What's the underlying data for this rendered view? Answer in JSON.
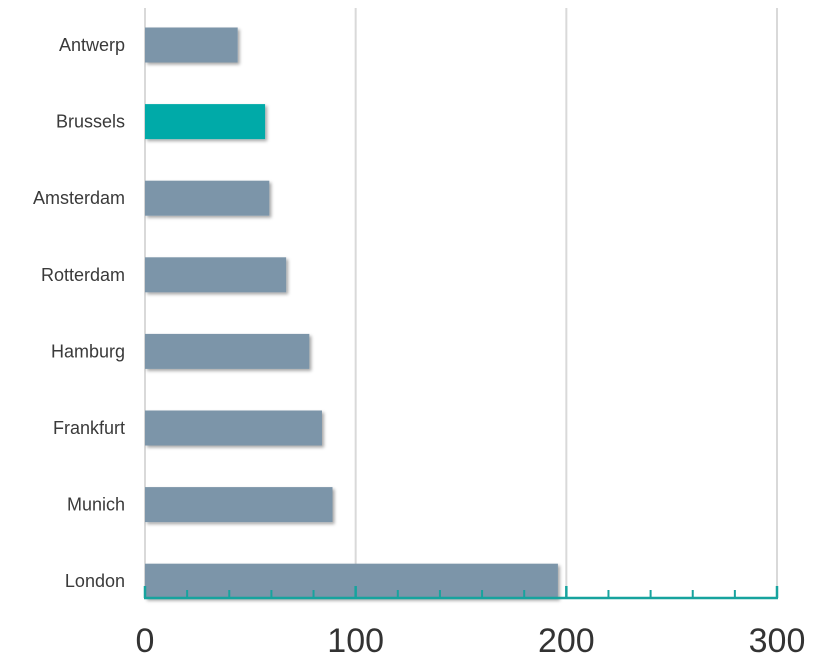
{
  "chart_data": {
    "type": "bar",
    "orientation": "horizontal",
    "categories": [
      "Antwerp",
      "Brussels",
      "Amsterdam",
      "Rotterdam",
      "Hamburg",
      "Frankfurt",
      "Munich",
      "London"
    ],
    "values": [
      44,
      57,
      59,
      67,
      78,
      84,
      89,
      196
    ],
    "highlight_category": "Brussels",
    "xlim": [
      0,
      300
    ],
    "x_ticks": [
      0,
      100,
      200,
      300
    ],
    "x_minor_tick_step": 20,
    "grid": "vertical",
    "colors": {
      "bar": "#7b95a9",
      "highlight": "#00aaa8",
      "axis": "#17a39e",
      "grid": "#d9d9d9"
    }
  }
}
